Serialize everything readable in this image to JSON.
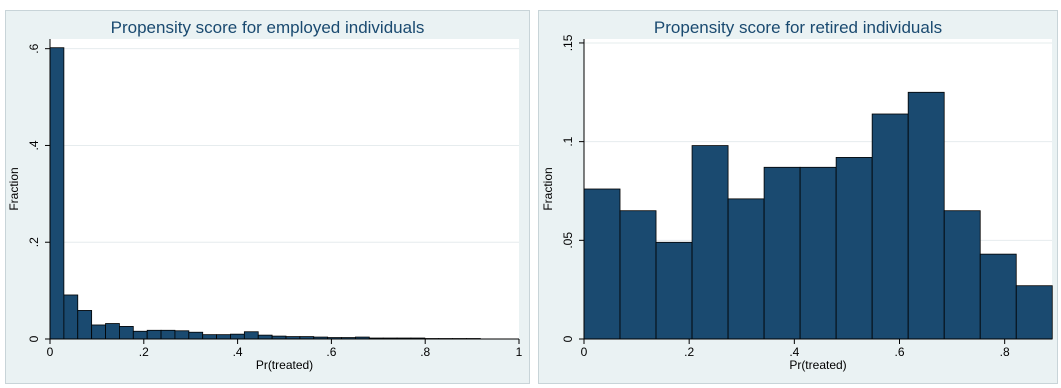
{
  "chart_data": [
    {
      "type": "bar",
      "title": "Propensity score for employed individuals",
      "xlabel": "Pr(treated)",
      "ylabel": "Fraction",
      "xlim": [
        0,
        1
      ],
      "ylim": [
        0,
        0.62
      ],
      "xticks": [
        0,
        0.2,
        0.4,
        0.6,
        0.8,
        1
      ],
      "xtick_labels": [
        "0",
        ".2",
        ".4",
        ".6",
        ".8",
        "1"
      ],
      "yticks": [
        0,
        0.2,
        0.4,
        0.6
      ],
      "ytick_labels": [
        "0",
        ".2",
        ".4",
        ".6"
      ],
      "grid": true,
      "bin_width": 0.0296,
      "bins_start": 0.0,
      "values": [
        0.602,
        0.091,
        0.059,
        0.029,
        0.032,
        0.026,
        0.016,
        0.018,
        0.018,
        0.017,
        0.014,
        0.009,
        0.009,
        0.01,
        0.015,
        0.008,
        0.006,
        0.005,
        0.005,
        0.004,
        0.003,
        0.003,
        0.004,
        0.002,
        0.002,
        0.002,
        0.002,
        0.001,
        0.001,
        0.001,
        0.001,
        0.0,
        0.0,
        0.0,
        0.0
      ],
      "bar_color": "#1a4a70"
    },
    {
      "type": "bar",
      "title": "Propensity score for retired individuals",
      "xlabel": "Pr(treated)",
      "ylabel": "Fraction",
      "xlim": [
        0,
        0.89
      ],
      "ylim": [
        0,
        0.152
      ],
      "xticks": [
        0,
        0.2,
        0.4,
        0.6,
        0.8
      ],
      "xtick_labels": [
        "0",
        ".2",
        ".4",
        ".6",
        ".8"
      ],
      "yticks": [
        0,
        0.05,
        0.1,
        0.15
      ],
      "ytick_labels": [
        "0",
        ".05",
        ".1",
        ".15"
      ],
      "grid": true,
      "bin_width": 0.0685,
      "bins_start": 0.0,
      "values": [
        0.076,
        0.065,
        0.049,
        0.098,
        0.071,
        0.087,
        0.087,
        0.092,
        0.114,
        0.125,
        0.065,
        0.043,
        0.027
      ],
      "bar_color": "#1a4a70"
    }
  ]
}
